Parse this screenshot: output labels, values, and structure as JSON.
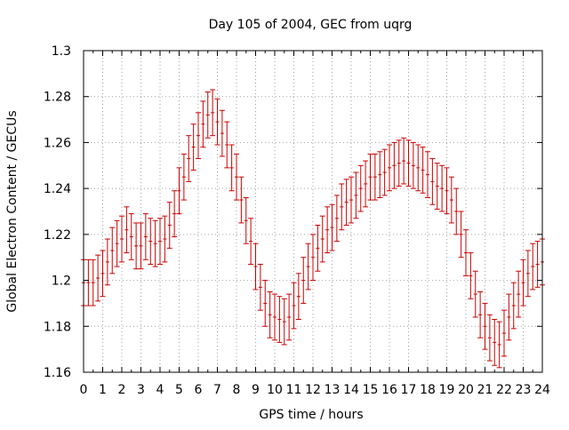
{
  "chart_data": {
    "type": "scatter",
    "title": "Day 105 of 2004, GEC from uqrg",
    "xlabel": "GPS time / hours",
    "ylabel": "Global Electron Content / GECUs",
    "xlim": [
      0,
      24
    ],
    "ylim": [
      1.16,
      1.3
    ],
    "xticks": [
      "0",
      "1",
      "2",
      "3",
      "4",
      "5",
      "6",
      "7",
      "8",
      "9",
      "10",
      "11",
      "12",
      "13",
      "14",
      "15",
      "16",
      "17",
      "18",
      "19",
      "20",
      "21",
      "22",
      "23",
      "24"
    ],
    "yticks": [
      "1.16",
      "1.18",
      "1.2",
      "1.22",
      "1.24",
      "1.26",
      "1.28",
      "1.3"
    ],
    "grid": true,
    "error_bar_color": "#cc0000",
    "series": [
      {
        "x": [
          0,
          0.25,
          0.5,
          0.75,
          1,
          1.25,
          1.5,
          1.75,
          2,
          2.25,
          2.5,
          2.75,
          3,
          3.25,
          3.5,
          3.75,
          4,
          4.25,
          4.5,
          4.75,
          5,
          5.25,
          5.5,
          5.75,
          6,
          6.25,
          6.5,
          6.75,
          7,
          7.25,
          7.5,
          7.75,
          8,
          8.25,
          8.5,
          8.75,
          9,
          9.25,
          9.5,
          9.75,
          10,
          10.25,
          10.5,
          10.75,
          11,
          11.25,
          11.5,
          11.75,
          12,
          12.25,
          12.5,
          12.75,
          13,
          13.25,
          13.5,
          13.75,
          14,
          14.25,
          14.5,
          14.75,
          15,
          15.25,
          15.5,
          15.75,
          16,
          16.25,
          16.5,
          16.75,
          17,
          17.25,
          17.5,
          17.75,
          18,
          18.25,
          18.5,
          18.75,
          19,
          19.25,
          19.5,
          19.75,
          20,
          20.25,
          20.5,
          20.75,
          21,
          21.25,
          21.5,
          21.75,
          22,
          22.25,
          22.5,
          22.75,
          23,
          23.25,
          23.5,
          23.75,
          24
        ],
        "y": [
          1.199,
          1.199,
          1.199,
          1.201,
          1.203,
          1.208,
          1.213,
          1.216,
          1.218,
          1.222,
          1.219,
          1.215,
          1.215,
          1.219,
          1.217,
          1.216,
          1.217,
          1.218,
          1.224,
          1.229,
          1.239,
          1.245,
          1.253,
          1.258,
          1.263,
          1.268,
          1.272,
          1.273,
          1.269,
          1.264,
          1.259,
          1.249,
          1.245,
          1.235,
          1.226,
          1.217,
          1.206,
          1.197,
          1.19,
          1.185,
          1.184,
          1.183,
          1.182,
          1.184,
          1.189,
          1.193,
          1.2,
          1.206,
          1.21,
          1.214,
          1.218,
          1.222,
          1.223,
          1.227,
          1.232,
          1.234,
          1.235,
          1.237,
          1.24,
          1.242,
          1.245,
          1.245,
          1.246,
          1.247,
          1.249,
          1.25,
          1.251,
          1.252,
          1.251,
          1.25,
          1.249,
          1.248,
          1.246,
          1.243,
          1.241,
          1.24,
          1.239,
          1.235,
          1.23,
          1.22,
          1.212,
          1.202,
          1.194,
          1.185,
          1.18,
          1.175,
          1.173,
          1.172,
          1.177,
          1.184,
          1.189,
          1.194,
          1.199,
          1.203,
          1.206,
          1.207,
          1.208
        ],
        "error": 0.01
      }
    ]
  }
}
